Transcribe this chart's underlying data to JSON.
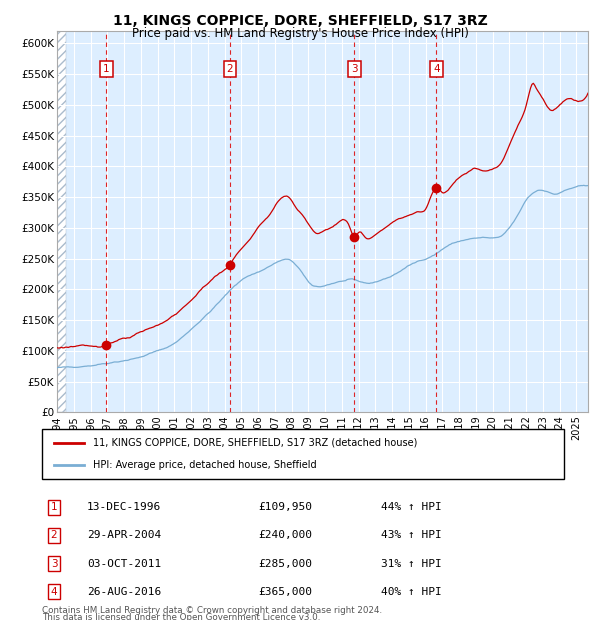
{
  "title": "11, KINGS COPPICE, DORE, SHEFFIELD, S17 3RZ",
  "subtitle": "Price paid vs. HM Land Registry's House Price Index (HPI)",
  "legend_line1": "11, KINGS COPPICE, DORE, SHEFFIELD, S17 3RZ (detached house)",
  "legend_line2": "HPI: Average price, detached house, Sheffield",
  "footer1": "Contains HM Land Registry data © Crown copyright and database right 2024.",
  "footer2": "This data is licensed under the Open Government Licence v3.0.",
  "transactions": [
    {
      "num": 1,
      "date": "13-DEC-1996",
      "price": 109950,
      "price_str": "£109,950",
      "pct": "44%",
      "date_val": 1996.95
    },
    {
      "num": 2,
      "date": "29-APR-2004",
      "price": 240000,
      "price_str": "£240,000",
      "pct": "43%",
      "date_val": 2004.33
    },
    {
      "num": 3,
      "date": "03-OCT-2011",
      "price": 285000,
      "price_str": "£285,000",
      "pct": "31%",
      "date_val": 2011.75
    },
    {
      "num": 4,
      "date": "26-AUG-2016",
      "price": 365000,
      "price_str": "£365,000",
      "pct": "40%",
      "date_val": 2016.65
    }
  ],
  "ylim": [
    0,
    620000
  ],
  "xlim": [
    1994.0,
    2025.7
  ],
  "yticks": [
    0,
    50000,
    100000,
    150000,
    200000,
    250000,
    300000,
    350000,
    400000,
    450000,
    500000,
    550000,
    600000
  ],
  "ytick_labels": [
    "£0",
    "£50K",
    "£100K",
    "£150K",
    "£200K",
    "£250K",
    "£300K",
    "£350K",
    "£400K",
    "£450K",
    "£500K",
    "£550K",
    "£600K"
  ],
  "red_color": "#cc0000",
  "blue_color": "#7aaed4",
  "bg_color": "#ddeeff",
  "grid_color": "#ffffff",
  "label_color": "#cc0000",
  "vline_color": "#dd0000"
}
